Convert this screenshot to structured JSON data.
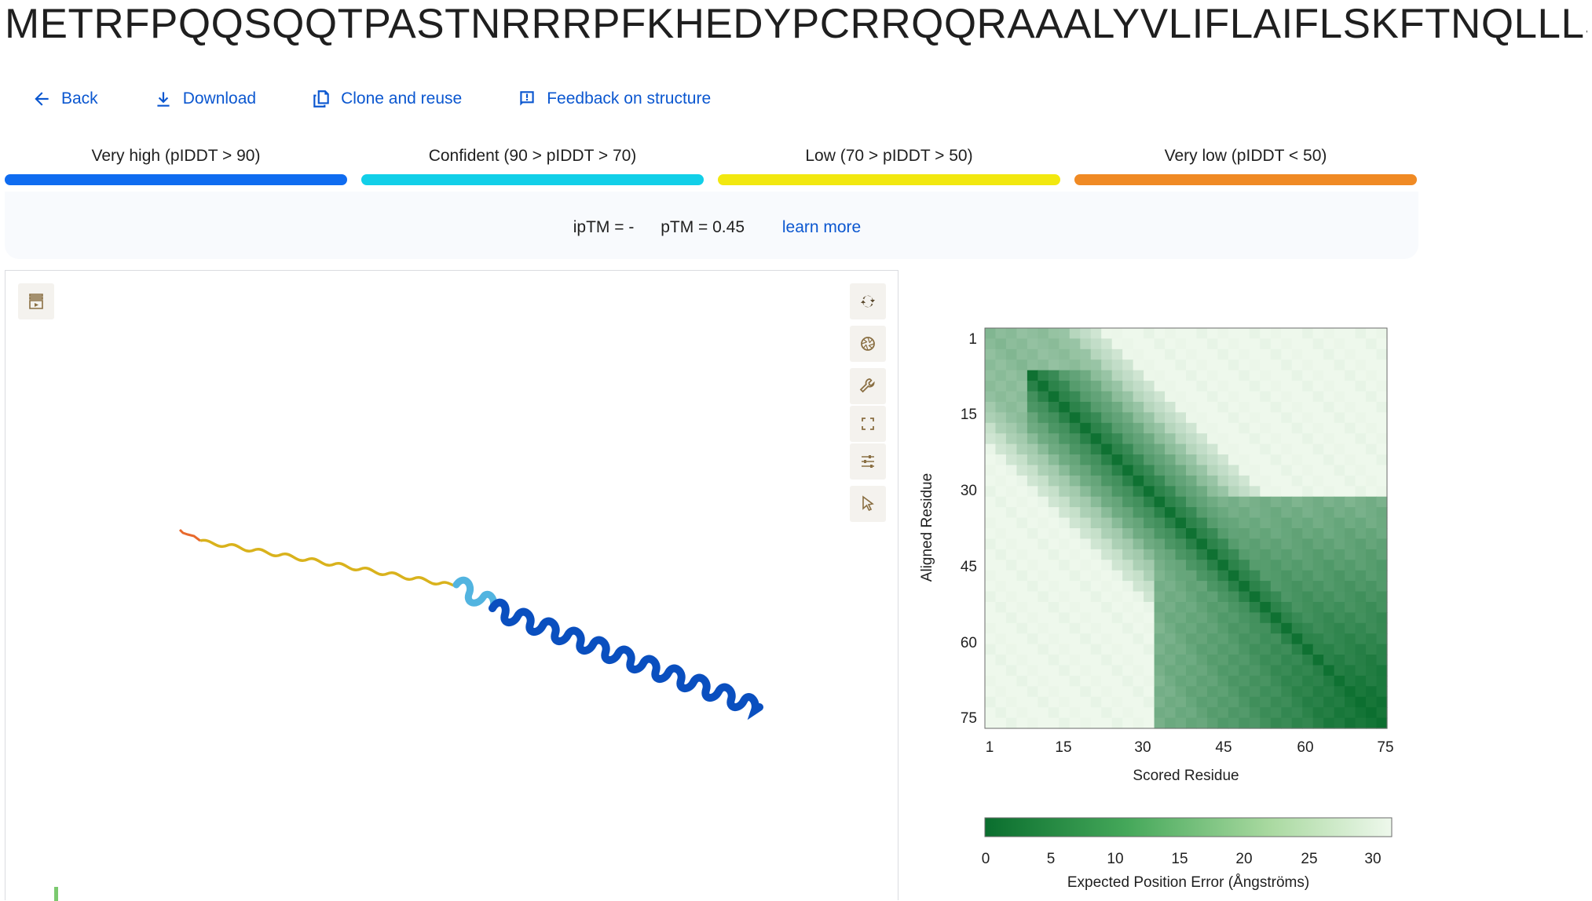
{
  "header": {
    "sequence_title": "METRFPQQSQQTPASTNRRRPFKHEDYPCRRQQRAAALYVLIFLAIFLSKFTNQLLLSLLEAV"
  },
  "toolbar": {
    "back_label": "Back",
    "download_label": "Download",
    "clone_label": "Clone and reuse",
    "feedback_label": "Feedback on structure"
  },
  "plddt_legend": [
    {
      "label": "Very high (pIDDT > 90)",
      "color": "#0f6cf0"
    },
    {
      "label": "Confident (90 > pIDDT > 70)",
      "color": "#12cfe8"
    },
    {
      "label": "Low (70 > pIDDT > 50)",
      "color": "#f2e80f"
    },
    {
      "label": "Very low (pIDDT < 50)",
      "color": "#f08a24"
    }
  ],
  "scores": {
    "iptm": "ipTM = -",
    "ptm": "pTM = 0.45",
    "learn_more": "learn more"
  },
  "viewer": {
    "icons": [
      "sequence-viewer-icon",
      "rotate-icon",
      "aperture-icon",
      "wrench-icon",
      "fullscreen-icon",
      "sliders-icon",
      "pointer-icon"
    ]
  },
  "pae": {
    "y_axis_label": "Aligned Residue",
    "x_axis_label": "Scored Residue",
    "y_ticks": [
      "1",
      "15",
      "30",
      "45",
      "60",
      "75"
    ],
    "x_ticks": [
      "1",
      "15",
      "30",
      "45",
      "60",
      "75"
    ],
    "colorbar_ticks": [
      "0",
      "5",
      "10",
      "15",
      "20",
      "25",
      "30"
    ],
    "colorbar_label": "Expected Position Error (Ångströms)",
    "color_low": "#0a6e2e",
    "color_high": "#eef8ec"
  }
}
